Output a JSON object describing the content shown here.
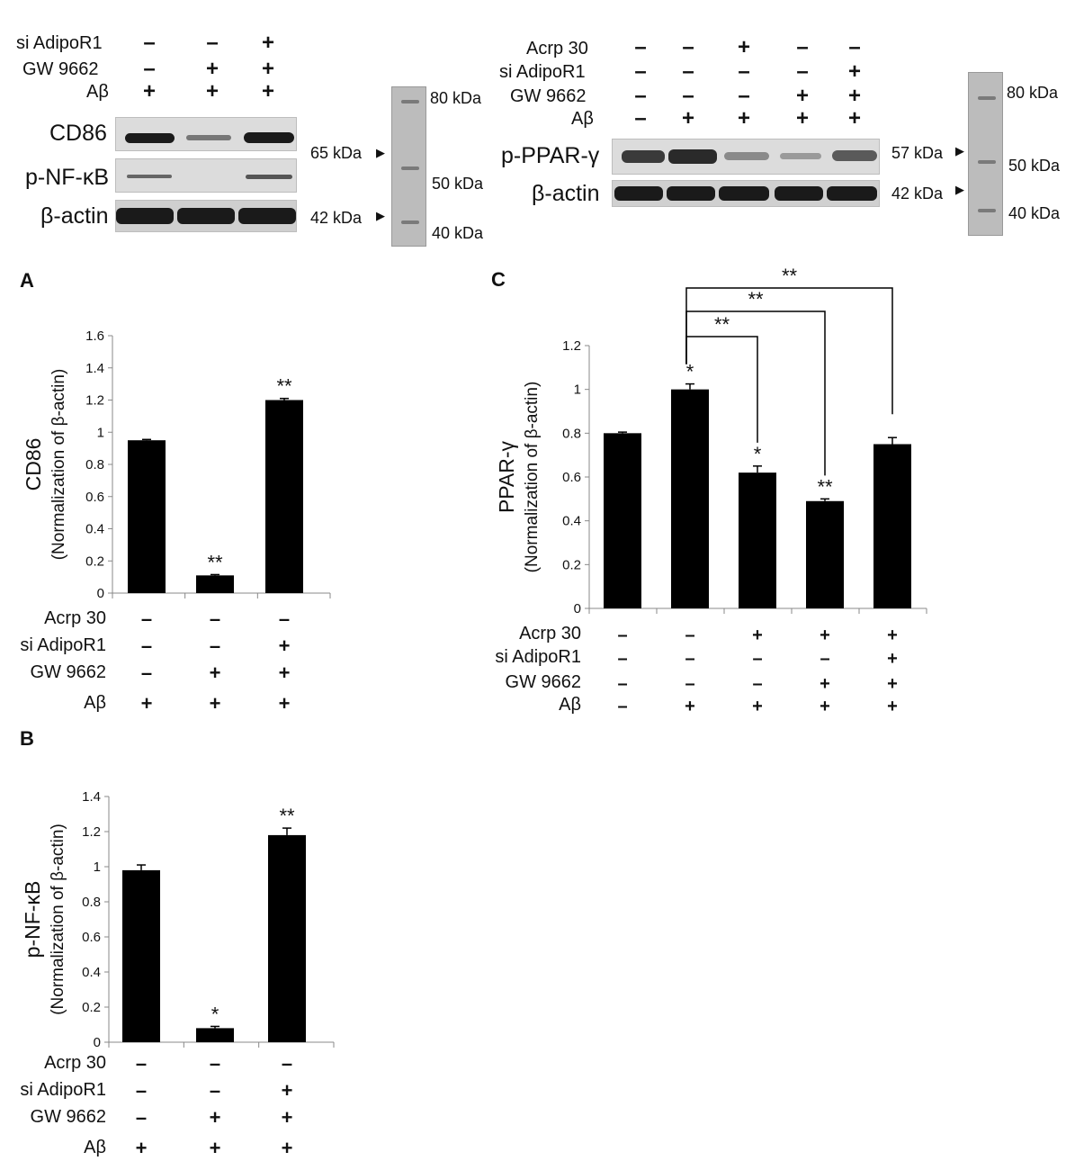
{
  "blots": {
    "left": {
      "row_labels": [
        "si AdipoR1",
        "GW 9662",
        "Aβ"
      ],
      "signs": [
        [
          "–",
          "–",
          "+"
        ],
        [
          "–",
          "+",
          "+"
        ],
        [
          "+",
          "+",
          "+"
        ]
      ],
      "bands": [
        "CD86",
        "p-NF-κB",
        "β-actin"
      ],
      "markers": [
        "65 kDa",
        "42 kDa"
      ],
      "ladder": [
        "80 kDa",
        "50 kDa",
        "40 kDa"
      ]
    },
    "right": {
      "row_labels": [
        "Acrp 30",
        "si AdipoR1",
        "GW 9662",
        "Aβ"
      ],
      "signs": [
        [
          "–",
          "–",
          "+",
          "–",
          "–"
        ],
        [
          "–",
          "–",
          "–",
          "–",
          "+"
        ],
        [
          "–",
          "–",
          "–",
          "+",
          "+"
        ],
        [
          "–",
          "+",
          "+",
          "+",
          "+"
        ]
      ],
      "bands": [
        "p-PPAR-γ",
        "β-actin"
      ],
      "markers": [
        "57 kDa",
        "42 kDa"
      ],
      "ladder": [
        "80 kDa",
        "50 kDa",
        "40 kDa"
      ]
    }
  },
  "panels": {
    "A": "A",
    "B": "B",
    "C": "C"
  },
  "chart_data": [
    {
      "panel": "A",
      "type": "bar",
      "ylabel": "CD86",
      "ylabel2": "(Normalization of β-actin)",
      "ylim": [
        0,
        1.6
      ],
      "yticks": [
        "0",
        "0.2",
        "0.4",
        "0.6",
        "0.8",
        "1",
        "1.2",
        "1.4",
        "1.6"
      ],
      "values": [
        0.95,
        0.11,
        1.2
      ],
      "errors": [
        0.005,
        0.005,
        0.01
      ],
      "significance": [
        "",
        "**",
        "**"
      ],
      "treatment_labels": [
        "Acrp 30",
        "si AdipoR1",
        "GW 9662",
        "Aβ"
      ],
      "treatments": [
        [
          "–",
          "–",
          "–"
        ],
        [
          "–",
          "–",
          "+"
        ],
        [
          "–",
          "+",
          "+"
        ],
        [
          "+",
          "+",
          "+"
        ]
      ]
    },
    {
      "panel": "B",
      "type": "bar",
      "ylabel": "p-NF-κB",
      "ylabel2": "(Normalization of β-actin)",
      "ylim": [
        0,
        1.4
      ],
      "yticks": [
        "0",
        "0.2",
        "0.4",
        "0.6",
        "0.8",
        "1",
        "1.2",
        "1.4"
      ],
      "values": [
        0.98,
        0.08,
        1.18
      ],
      "errors": [
        0.03,
        0.01,
        0.04
      ],
      "significance": [
        "",
        "*",
        "**"
      ],
      "treatment_labels": [
        "Acrp 30",
        "si AdipoR1",
        "GW 9662",
        "Aβ"
      ],
      "treatments": [
        [
          "–",
          "–",
          "–"
        ],
        [
          "–",
          "–",
          "+"
        ],
        [
          "–",
          "+",
          "+"
        ],
        [
          "+",
          "+",
          "+"
        ]
      ]
    },
    {
      "panel": "C",
      "type": "bar",
      "ylabel": "PPAR-γ",
      "ylabel2": "(Normalization of β-actin)",
      "ylim": [
        0,
        1.2
      ],
      "yticks": [
        "0",
        "0.2",
        "0.4",
        "0.6",
        "0.8",
        "1",
        "1.2"
      ],
      "values": [
        0.8,
        1.0,
        0.62,
        0.49,
        0.75
      ],
      "errors": [
        0.005,
        0.025,
        0.03,
        0.01,
        0.03
      ],
      "significance": [
        "",
        "*",
        "*",
        "**",
        ""
      ],
      "comparisons": [
        {
          "from": 1,
          "to": 2,
          "label": "**"
        },
        {
          "from": 1,
          "to": 3,
          "label": "**"
        },
        {
          "from": 1,
          "to": 4,
          "label": "**"
        }
      ],
      "treatment_labels": [
        "Acrp 30",
        "si AdipoR1",
        "GW 9662",
        "Aβ"
      ],
      "treatments": [
        [
          "–",
          "–",
          "+",
          "+",
          "+"
        ],
        [
          "–",
          "–",
          "–",
          "–",
          "+"
        ],
        [
          "–",
          "–",
          "–",
          "+",
          "+"
        ],
        [
          "–",
          "+",
          "+",
          "+",
          "+"
        ]
      ]
    }
  ]
}
